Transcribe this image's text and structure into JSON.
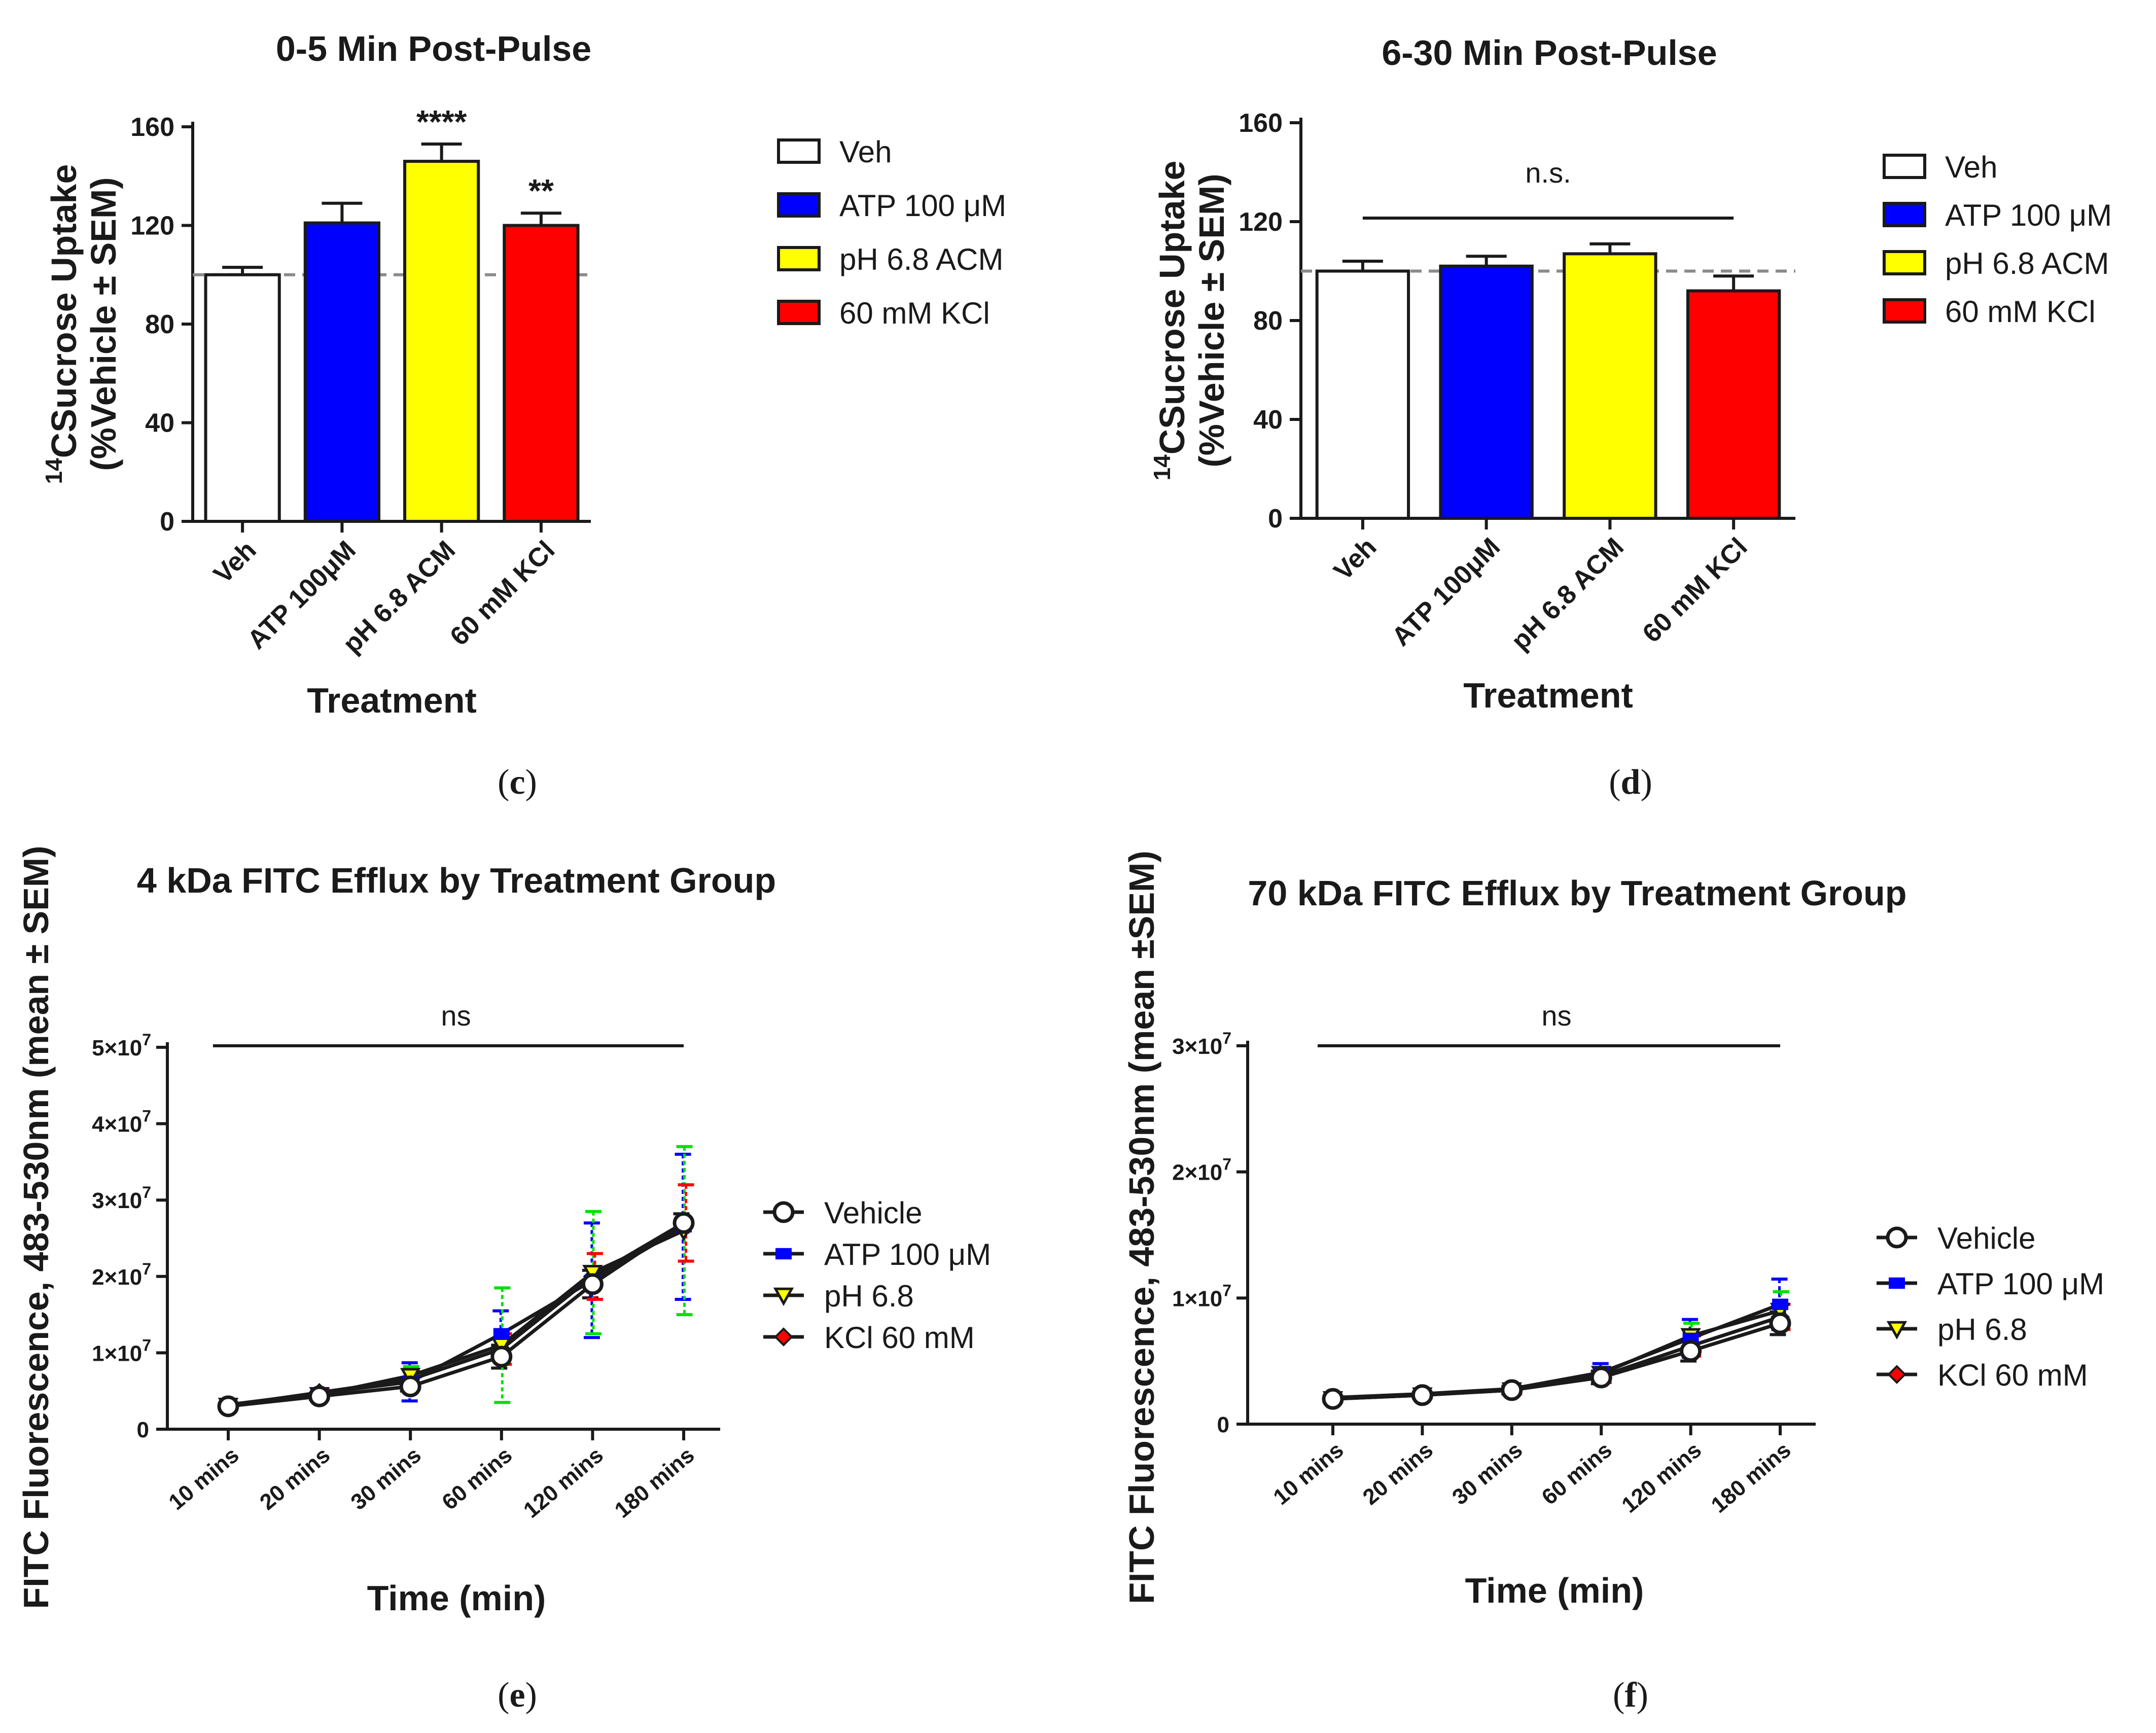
{
  "colors": {
    "Veh": "#ffffff",
    "ATP": "#0000ff",
    "pH": "#ffff00",
    "KCl": "#ff0000",
    "axis": "#1a1a1a",
    "refline": "#8a8a8a"
  },
  "chart_data": [
    {
      "id": "c",
      "type": "bar",
      "title": "0-5 Min Post-Pulse",
      "ylabel_sup": "14",
      "ylabel_line1": "CSucrose Uptake",
      "ylabel_line2": "(%Vehicle ± SEM)",
      "xlabel": "Treatment",
      "categories": [
        "Veh",
        "ATP 100μM",
        "pH 6.8 ACM",
        "60 mM KCl"
      ],
      "values": [
        100,
        121,
        146,
        120
      ],
      "errors": [
        3,
        8,
        7,
        5
      ],
      "significance": [
        "",
        "",
        "****",
        "**"
      ],
      "ylim": [
        0,
        160
      ],
      "yticks": [
        "0",
        "40",
        "80",
        "120",
        "160"
      ],
      "reference_line": 100,
      "legend": [
        "Veh",
        "ATP 100 μM",
        "pH 6.8 ACM",
        "60 mM KCl"
      ],
      "panel_label": "c"
    },
    {
      "id": "d",
      "type": "bar",
      "title": "6-30 Min Post-Pulse",
      "ylabel_sup": "14",
      "ylabel_line1": "CSucrose Uptake",
      "ylabel_line2": "(%Vehicle ± SEM)",
      "xlabel": "Treatment",
      "categories": [
        "Veh",
        "ATP 100μM",
        "pH 6.8 ACM",
        "60 mM KCl"
      ],
      "values": [
        100,
        102,
        107,
        92
      ],
      "errors": [
        4,
        4,
        4,
        6
      ],
      "annotation": "n.s.",
      "ylim": [
        0,
        160
      ],
      "yticks": [
        "0",
        "40",
        "80",
        "120",
        "160"
      ],
      "reference_line": 100,
      "legend": [
        "Veh",
        "ATP 100 μM",
        "pH 6.8 ACM",
        "60 mM KCl"
      ],
      "panel_label": "d"
    },
    {
      "id": "e",
      "type": "line",
      "title": "4 kDa FITC Efflux by Treatment Group",
      "ylabel": "FITC Fluorescence, 483-530nm (mean ± SEM)",
      "xlabel": "Time (min)",
      "categories": [
        "10 mins",
        "20 mins",
        "30 mins",
        "60 mins",
        "120 mins",
        "180 mins"
      ],
      "yticks": [
        "0",
        "1×10",
        "2×10",
        "3×10",
        "4×10",
        "5×10"
      ],
      "ytick_exp": "7",
      "ylim": [
        0,
        50000000
      ],
      "annotation": "ns",
      "series": [
        {
          "name": "Vehicle",
          "values": [
            3000000,
            4300000,
            5600000,
            9500000,
            19000000,
            27000000
          ],
          "errors": [
            300000,
            400000,
            600000,
            1500000,
            1800000,
            1200000
          ]
        },
        {
          "name": "ATP 100 μM",
          "values": [
            3200000,
            4700000,
            6200000,
            12500000,
            19500000,
            26500000
          ],
          "errors": [
            300000,
            500000,
            2500000,
            3000000,
            7500000,
            9500000
          ]
        },
        {
          "name": "pH 6.8",
          "values": [
            3100000,
            4500000,
            7000000,
            11000000,
            20500000,
            26000000
          ],
          "errors": [
            300000,
            400000,
            1200000,
            7500000,
            8000000,
            11000000
          ]
        },
        {
          "name": "KCl 60 mM",
          "values": [
            3100000,
            4800000,
            6500000,
            10500000,
            20000000,
            27000000
          ],
          "errors": [
            300000,
            400000,
            1000000,
            2000000,
            3000000,
            5000000
          ]
        }
      ],
      "panel_label": "e"
    },
    {
      "id": "f",
      "type": "line",
      "title": "70 kDa FITC Efflux by Treatment Group",
      "ylabel": "FITC Fluorescence, 483-530nm (mean ±SEM)",
      "xlabel": "Time (min)",
      "categories": [
        "10 mins",
        "20 mins",
        "30 mins",
        "60 mins",
        "120 mins",
        "180 mins"
      ],
      "yticks": [
        "0",
        "1×10",
        "2×10",
        "3×10"
      ],
      "ytick_exp": "7",
      "ylim": [
        0,
        30000000
      ],
      "annotation": "ns",
      "series": [
        {
          "name": "Vehicle",
          "values": [
            2000000,
            2300000,
            2700000,
            3700000,
            5800000,
            8000000
          ],
          "errors": [
            200000,
            200000,
            300000,
            500000,
            800000,
            900000
          ]
        },
        {
          "name": "ATP 100 μM",
          "values": [
            2100000,
            2400000,
            2800000,
            4100000,
            6800000,
            9500000
          ],
          "errors": [
            200000,
            300000,
            300000,
            700000,
            1500000,
            2000000
          ]
        },
        {
          "name": "pH 6.8",
          "values": [
            2000000,
            2300000,
            2700000,
            4000000,
            7000000,
            9000000
          ],
          "errors": [
            200000,
            200000,
            300000,
            500000,
            1000000,
            1500000
          ]
        },
        {
          "name": "KCl 60 mM",
          "values": [
            2000000,
            2300000,
            2700000,
            3800000,
            6200000,
            8500000
          ],
          "errors": [
            200000,
            200000,
            300000,
            500000,
            800000,
            1000000
          ]
        }
      ],
      "panel_label": "f"
    }
  ]
}
